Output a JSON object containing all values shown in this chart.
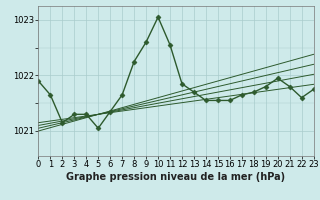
{
  "title": "Graphe pression niveau de la mer (hPa)",
  "bg_color": "#ceeaea",
  "grid_color": "#aacccc",
  "line_color": "#2d5a2d",
  "xlim": [
    0,
    23
  ],
  "ylim": [
    1020.55,
    1023.25
  ],
  "yticks": [
    1021,
    1022,
    1023
  ],
  "xticks": [
    0,
    1,
    2,
    3,
    4,
    5,
    6,
    7,
    8,
    9,
    10,
    11,
    12,
    13,
    14,
    15,
    16,
    17,
    18,
    19,
    20,
    21,
    22,
    23
  ],
  "active_series": [
    1021.9,
    1021.65,
    1021.15,
    1021.3,
    1021.3,
    1021.05,
    1021.35,
    1021.65,
    1022.25,
    1022.6,
    1023.05,
    1022.55,
    1021.85,
    1021.7,
    1021.55,
    1021.55,
    1021.55,
    1021.65,
    1021.7,
    1021.8,
    1021.95,
    1021.8,
    1021.6,
    1021.75
  ],
  "trend_series": [
    [
      1021.15,
      1021.18,
      1021.21,
      1021.24,
      1021.27,
      1021.3,
      1021.33,
      1021.36,
      1021.39,
      1021.42,
      1021.45,
      1021.48,
      1021.51,
      1021.54,
      1021.57,
      1021.6,
      1021.63,
      1021.66,
      1021.69,
      1021.72,
      1021.75,
      1021.78,
      1021.81,
      1021.84
    ],
    [
      1021.1,
      1021.14,
      1021.18,
      1021.22,
      1021.26,
      1021.3,
      1021.34,
      1021.38,
      1021.42,
      1021.46,
      1021.5,
      1021.54,
      1021.58,
      1021.62,
      1021.66,
      1021.7,
      1021.74,
      1021.78,
      1021.82,
      1021.86,
      1021.9,
      1021.94,
      1021.98,
      1022.02
    ],
    [
      1021.05,
      1021.1,
      1021.15,
      1021.2,
      1021.25,
      1021.3,
      1021.35,
      1021.4,
      1021.45,
      1021.5,
      1021.55,
      1021.6,
      1021.65,
      1021.7,
      1021.75,
      1021.8,
      1021.85,
      1021.9,
      1021.95,
      1022.0,
      1022.05,
      1022.1,
      1022.15,
      1022.2
    ],
    [
      1021.0,
      1021.06,
      1021.12,
      1021.18,
      1021.24,
      1021.3,
      1021.36,
      1021.42,
      1021.48,
      1021.54,
      1021.6,
      1021.66,
      1021.72,
      1021.78,
      1021.84,
      1021.9,
      1021.96,
      1022.02,
      1022.08,
      1022.14,
      1022.2,
      1022.26,
      1022.32,
      1022.38
    ]
  ],
  "marker": "D",
  "markersize": 2.5,
  "linewidth": 1.0,
  "tick_fontsize": 6,
  "label_fontsize": 7
}
